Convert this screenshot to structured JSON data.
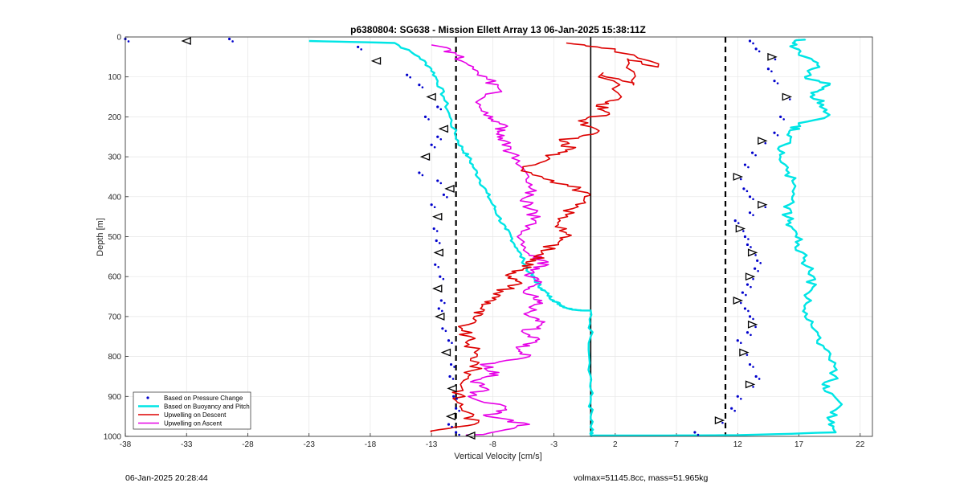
{
  "chart_data": {
    "type": "line",
    "title": "p6380804: SG638 - Mission Ellett Array 13 06-Jan-2025 15:38:11Z",
    "xlabel": "Vertical Velocity [cm/s]",
    "ylabel": "Depth [m]",
    "xlim": [
      -38,
      23
    ],
    "ylim": [
      0,
      1000
    ],
    "y_reversed": true,
    "x_ticks": [
      -38,
      -33,
      -28,
      -23,
      -18,
      -13,
      -8,
      -3,
      2,
      7,
      12,
      17,
      22
    ],
    "y_ticks": [
      0,
      100,
      200,
      300,
      400,
      500,
      600,
      700,
      800,
      900,
      1000
    ],
    "grid": true,
    "legend_position": "bottom-left",
    "reference_lines": [
      {
        "style": "dashed",
        "x": -11
      },
      {
        "style": "dashed",
        "x": 11
      },
      {
        "style": "solid",
        "x": 0
      }
    ],
    "series": [
      {
        "name": "Based on Pressure Change",
        "style": "dots",
        "color": "#0000cc",
        "descent": {
          "x": [
            -38,
            -33,
            -29.5,
            -19,
            -17.5,
            -15,
            -14,
            -13,
            -12.5,
            -13.5,
            -12,
            -12.5,
            -13,
            -13.5,
            -14,
            -12.5,
            -11.5,
            -12,
            -13,
            -12.5,
            -12.8,
            -12.6,
            -12.4,
            -12.7,
            -12.3,
            -12.5,
            -12.2,
            -12.4,
            -12.3,
            -12.1,
            -11.6,
            -11.8,
            -11.4,
            -11.5,
            -11.3,
            -11.2,
            -11.0,
            -11.4,
            -11.6,
            -11.0,
            -9.8
          ],
          "y": [
            5,
            10,
            5,
            25,
            60,
            95,
            120,
            150,
            175,
            200,
            230,
            250,
            270,
            300,
            340,
            360,
            380,
            395,
            420,
            450,
            480,
            510,
            540,
            570,
            600,
            630,
            660,
            680,
            700,
            730,
            760,
            790,
            820,
            850,
            880,
            900,
            930,
            950,
            970,
            990,
            998
          ]
        },
        "ascent": {
          "x": [
            8.5,
            10.5,
            11.5,
            12,
            13,
            13.5,
            13,
            12.5,
            12,
            12.8,
            13.2,
            13.0,
            12.6,
            12.0,
            12.4,
            12.8,
            13.0,
            13.4,
            13.6,
            13.2,
            12.8,
            12.6,
            12.2,
            11.8,
            13.0,
            14.0,
            13.0,
            12.5,
            12.0,
            12.6,
            13.2,
            14.0,
            15.0,
            15.5,
            16.0,
            15.0,
            14.5,
            14.8,
            13.5,
            13.0
          ],
          "y": [
            990,
            960,
            930,
            900,
            870,
            850,
            820,
            790,
            760,
            740,
            720,
            700,
            680,
            660,
            640,
            620,
            600,
            580,
            560,
            540,
            520,
            500,
            480,
            460,
            440,
            420,
            400,
            380,
            350,
            320,
            290,
            260,
            240,
            200,
            150,
            110,
            80,
            50,
            30,
            10
          ]
        }
      },
      {
        "name": "Based on Buoyancy and Pitch",
        "style": "line",
        "color": "#00e5e5",
        "descent": {
          "x": [
            -23,
            -16,
            -14,
            -13,
            -12.5,
            -12,
            -11.5,
            -11,
            -10.5,
            -10,
            -9.5,
            -9,
            -8.5,
            -8,
            -7.5,
            -7,
            -6.5,
            -6,
            -5.5,
            -5,
            -4.5,
            -4,
            -3.5,
            -3,
            -2.5,
            -2,
            -1.5,
            -1,
            -0.5,
            0,
            0,
            0,
            0,
            0,
            0,
            0
          ],
          "y": [
            10,
            15,
            50,
            80,
            110,
            150,
            200,
            250,
            280,
            300,
            330,
            360,
            390,
            420,
            450,
            480,
            500,
            530,
            560,
            590,
            610,
            630,
            645,
            660,
            670,
            678,
            682,
            684,
            685,
            685,
            750,
            850,
            900,
            950,
            990,
            1000
          ]
        },
        "ascent": {
          "x": [
            0,
            5,
            12,
            20,
            19.5,
            20.5,
            19,
            20,
            19.5,
            18.5,
            18,
            17.5,
            17.8,
            18.2,
            17.5,
            17,
            16.5,
            16.0,
            16.2,
            16.6,
            16.2,
            15.5,
            15.8,
            16.2,
            17.0,
            19.5,
            19.0,
            18.0,
            19.5,
            17.5,
            18.5,
            17.0,
            16.5,
            17.5
          ],
          "y": [
            998,
            998,
            997,
            990,
            960,
            920,
            880,
            850,
            800,
            760,
            720,
            680,
            640,
            600,
            560,
            520,
            480,
            450,
            420,
            380,
            340,
            300,
            270,
            240,
            220,
            195,
            170,
            140,
            120,
            100,
            70,
            40,
            15,
            5
          ]
        }
      },
      {
        "name": "Upwelling on Descent",
        "style": "line",
        "color": "#dd0000",
        "x": [
          -2,
          2,
          5.5,
          3,
          3.5,
          1,
          2.5,
          0.5,
          1.5,
          -1,
          0.5,
          -2.5,
          -1.5,
          -3.5,
          -5.5,
          -3,
          -1,
          -0.5,
          -1.5,
          -2.5,
          -2,
          -2.5,
          -4,
          -4.5,
          -5.5,
          -6.5,
          -6,
          -7.5,
          -8,
          -9,
          -9.5,
          -10.5,
          -10,
          -9.5,
          -9.3,
          -10,
          -10.5,
          -11,
          -10,
          -9.5,
          -13
        ],
        "y": [
          15,
          30,
          75,
          55,
          120,
          90,
          150,
          170,
          190,
          210,
          240,
          260,
          280,
          300,
          330,
          360,
          380,
          400,
          430,
          460,
          490,
          510,
          540,
          560,
          580,
          600,
          620,
          640,
          660,
          680,
          700,
          730,
          760,
          790,
          820,
          850,
          880,
          910,
          940,
          970,
          990
        ]
      },
      {
        "name": "Upwelling on Ascent",
        "style": "line",
        "color": "#e600e6",
        "x": [
          -10,
          -8,
          -5,
          -8.5,
          -7,
          -10,
          -8.5,
          -9.5,
          -7.5,
          -9,
          -5,
          -6,
          -4.5,
          -5.5,
          -4,
          -5,
          -4.8,
          -4.0,
          -5.5,
          -4.5,
          -5.0,
          -4.2,
          -3.8,
          -5.2,
          -6.0,
          -4.5,
          -5.0,
          -5.2,
          -4.8,
          -5.5,
          -6.5,
          -7.0,
          -7.5,
          -7.0,
          -8.0,
          -9.0,
          -7.5,
          -8.5,
          -10.0,
          -11.0,
          -13.0
        ],
        "y": [
          998,
          990,
          970,
          950,
          930,
          900,
          880,
          860,
          840,
          820,
          800,
          780,
          760,
          740,
          720,
          700,
          680,
          660,
          640,
          620,
          600,
          580,
          560,
          540,
          500,
          460,
          430,
          400,
          370,
          330,
          290,
          260,
          240,
          220,
          200,
          170,
          130,
          100,
          70,
          40,
          20
        ]
      }
    ]
  },
  "footer": {
    "timestamp": "06-Jan-2025 20:28:44",
    "summary": "volmax=51145.8cc, mass=51.965kg"
  }
}
